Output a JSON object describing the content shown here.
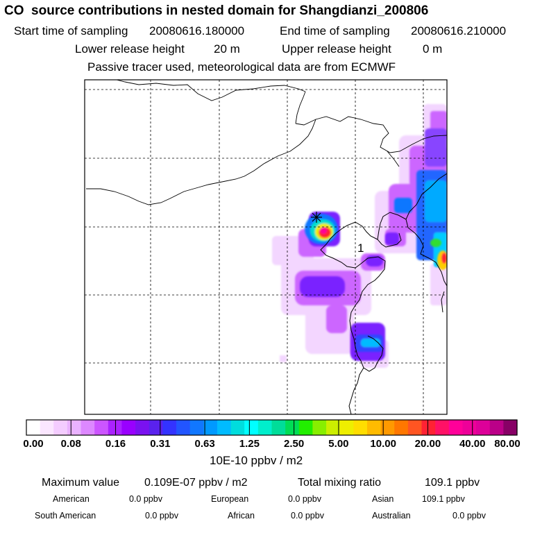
{
  "title": "CO  source contributions in nested domain for Shangdianzi_200806",
  "sampling": {
    "start_label": "Start time of sampling",
    "start_value": "20080616.180000",
    "end_label": "End time of sampling",
    "end_value": "20080616.210000"
  },
  "release": {
    "lower_label": "Lower release height",
    "lower_value": "20 m",
    "upper_label": "Upper release height",
    "upper_value": "0 m"
  },
  "note": "Passive tracer used, meteorological data are from ECMWF",
  "map": {
    "receptor_marker": "1",
    "station_icon": "star-marker-icon"
  },
  "colorbar": {
    "tick_labels": [
      "0.00",
      "0.08",
      "0.16",
      "0.31",
      "0.63",
      "1.25",
      "2.50",
      "5.00",
      "10.00",
      "20.00",
      "40.00",
      "80.00"
    ],
    "swatch_colors": [
      "#ffffff",
      "#fbe6ff",
      "#f4ccff",
      "#eab2ff",
      "#dd88ff",
      "#cc55ff",
      "#aa22ff",
      "#9900ff",
      "#7a11f0",
      "#5a22ee",
      "#3333ff",
      "#2255ff",
      "#1177ff",
      "#0099ff",
      "#00bbff",
      "#00dddd",
      "#00ffff",
      "#00eecc",
      "#00dd99",
      "#00dd55",
      "#22ee00",
      "#88ee00",
      "#ccee00",
      "#eeee00",
      "#ffdd00",
      "#ffbb00",
      "#ff9900",
      "#ff7700",
      "#ff5522",
      "#ff2233",
      "#ff1166",
      "#ff0099",
      "#ee0099",
      "#dd0099",
      "#bb0088",
      "#880066"
    ],
    "units": "10E-10 ppbv / m2"
  },
  "summary": {
    "max_label": "Maximum value",
    "max_value": "0.109E-07 ppbv / m2",
    "total_label": "Total mixing ratio",
    "total_value": "109.1 ppbv",
    "regions": [
      {
        "name": "American",
        "value": "0.0 ppbv"
      },
      {
        "name": "European",
        "value": "0.0 ppbv"
      },
      {
        "name": "Asian",
        "value": "109.1 ppbv"
      },
      {
        "name": "South American",
        "value": "0.0 ppbv"
      },
      {
        "name": "African",
        "value": "0.0 ppbv"
      },
      {
        "name": "Australian",
        "value": "0.0 ppbv"
      }
    ]
  }
}
